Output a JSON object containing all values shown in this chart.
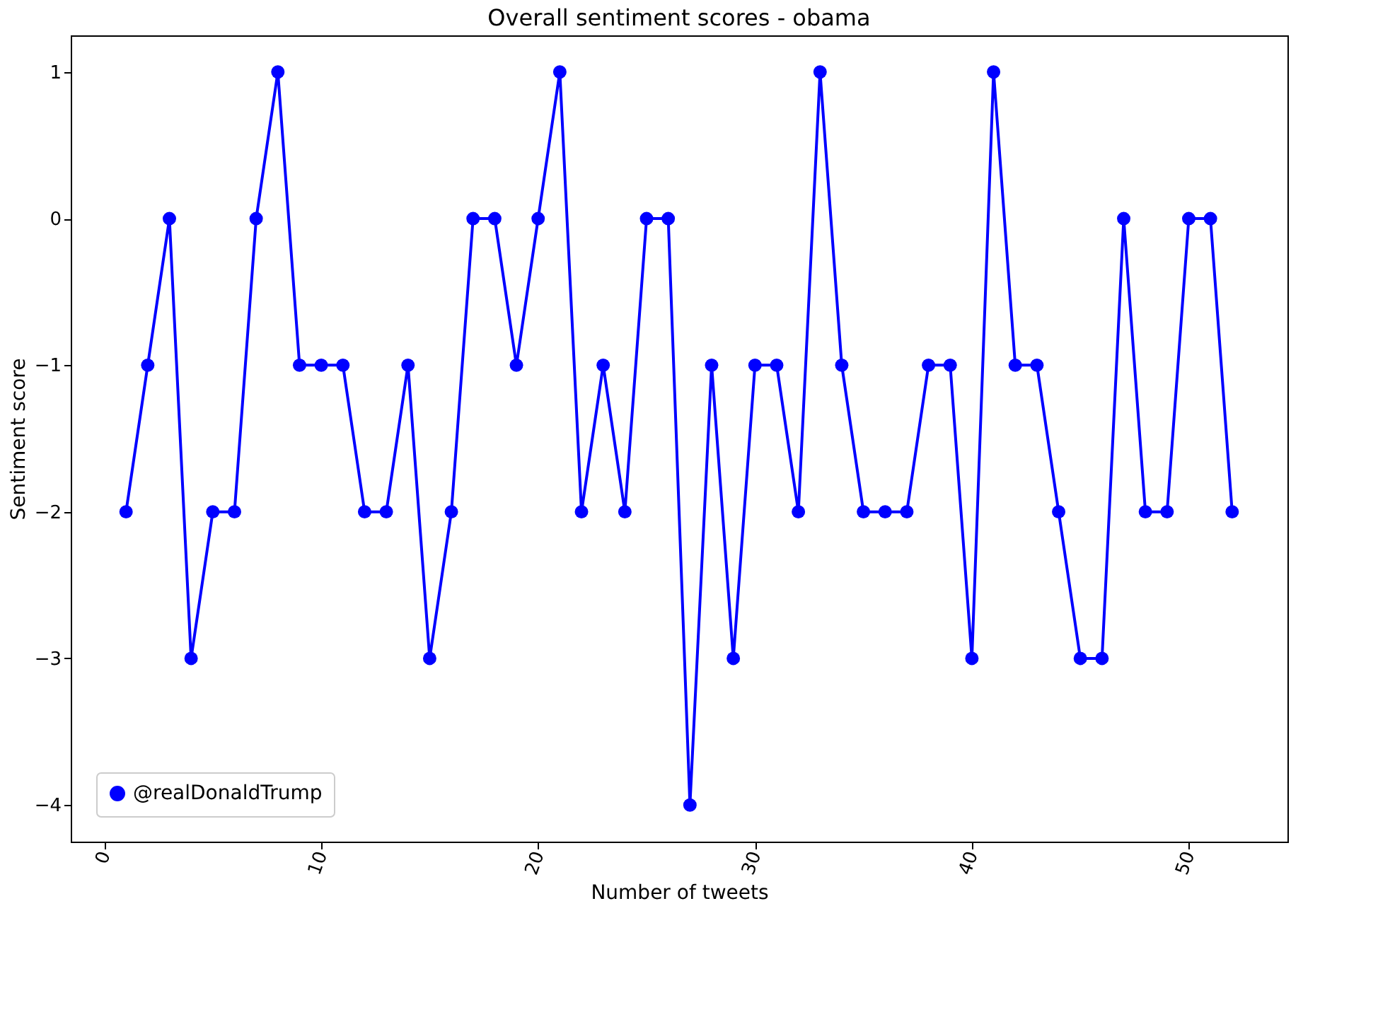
{
  "chart_data": {
    "type": "line",
    "title": "Overall sentiment scores - obama",
    "xlabel": "Number of tweets",
    "ylabel": "Sentiment score",
    "x": [
      1,
      2,
      3,
      4,
      5,
      6,
      7,
      8,
      9,
      10,
      11,
      12,
      13,
      14,
      15,
      16,
      17,
      18,
      19,
      20,
      21,
      22,
      23,
      24,
      25,
      26,
      27,
      28,
      29,
      30,
      31,
      32,
      33,
      34,
      35,
      36,
      37,
      38,
      39,
      40,
      41,
      42,
      43,
      44,
      45,
      46,
      47,
      48,
      49,
      50,
      51,
      52
    ],
    "series": [
      {
        "name": "@realDonaldTrump",
        "color": "#0000ff",
        "values": [
          -2,
          -1,
          0,
          -3,
          -2,
          -2,
          0,
          1,
          -1,
          -1,
          -1,
          -2,
          -2,
          -1,
          -3,
          -2,
          0,
          0,
          -1,
          0,
          1,
          -2,
          -1,
          -2,
          0,
          0,
          -4,
          -1,
          -3,
          -1,
          -1,
          -2,
          1,
          -1,
          -2,
          -2,
          -2,
          -1,
          -1,
          -3,
          1,
          -1,
          -1,
          -2,
          -3,
          -3,
          0,
          -2,
          -2,
          0,
          0,
          -2
        ]
      }
    ],
    "xlim": [
      -1.55,
      54.55
    ],
    "ylim": [
      -4.25,
      1.25
    ],
    "xticks": [
      0,
      10,
      20,
      30,
      40,
      50
    ],
    "yticks": [
      {
        "value": -4,
        "label": "−4"
      },
      {
        "value": -3,
        "label": "−3"
      },
      {
        "value": -2,
        "label": "−2"
      },
      {
        "value": -1,
        "label": "−1"
      },
      0,
      1
    ],
    "marker": "circle",
    "line_style": "solid",
    "grid": false,
    "legend": "bottom left"
  }
}
